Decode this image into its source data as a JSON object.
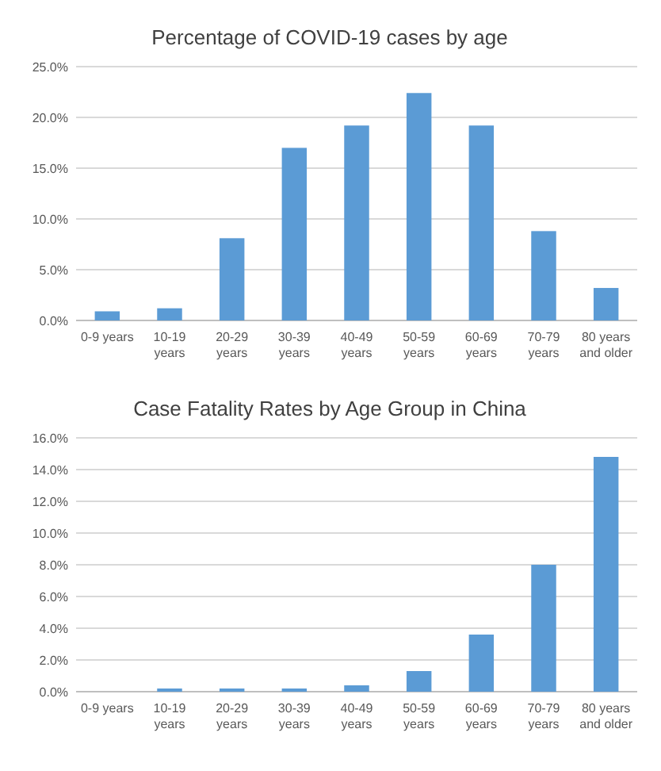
{
  "chart_data": [
    {
      "type": "bar",
      "title": "Percentage of COVID-19 cases by age",
      "categories": [
        "0-9 years",
        "10-19 years",
        "20-29 years",
        "30-39 years",
        "40-49 years",
        "50-59 years",
        "60-69 years",
        "70-79 years",
        "80 years and older"
      ],
      "values": [
        0.9,
        1.2,
        8.1,
        17.0,
        19.2,
        22.4,
        19.2,
        8.8,
        3.2
      ],
      "color": "#5b9bd5",
      "ylim": [
        0,
        25
      ],
      "yticks": [
        {
          "value": 0,
          "label": "0.0%"
        },
        {
          "value": 5,
          "label": "5.0%"
        },
        {
          "value": 10,
          "label": "10.0%"
        },
        {
          "value": 15,
          "label": "15.0%"
        },
        {
          "value": 20,
          "label": "20.0%"
        },
        {
          "value": 25,
          "label": "25.0%"
        }
      ],
      "grid": "y"
    },
    {
      "type": "bar",
      "title": "Case Fatality Rates by Age Group in China",
      "categories": [
        "0-9 years",
        "10-19 years",
        "20-29 years",
        "30-39 years",
        "40-49 years",
        "50-59 years",
        "60-69 years",
        "70-79 years",
        "80 years and older"
      ],
      "values": [
        0,
        0.2,
        0.2,
        0.2,
        0.4,
        1.3,
        3.6,
        8.0,
        14.8
      ],
      "color": "#5b9bd5",
      "ylim": [
        0,
        16
      ],
      "yticks": [
        {
          "value": 0,
          "label": "0.0%"
        },
        {
          "value": 2,
          "label": "2.0%"
        },
        {
          "value": 4,
          "label": "4.0%"
        },
        {
          "value": 6,
          "label": "6.0%"
        },
        {
          "value": 8,
          "label": "8.0%"
        },
        {
          "value": 10,
          "label": "10.0%"
        },
        {
          "value": 12,
          "label": "12.0%"
        },
        {
          "value": 14,
          "label": "14.0%"
        },
        {
          "value": 16,
          "label": "16.0%"
        }
      ],
      "grid": "y"
    }
  ]
}
